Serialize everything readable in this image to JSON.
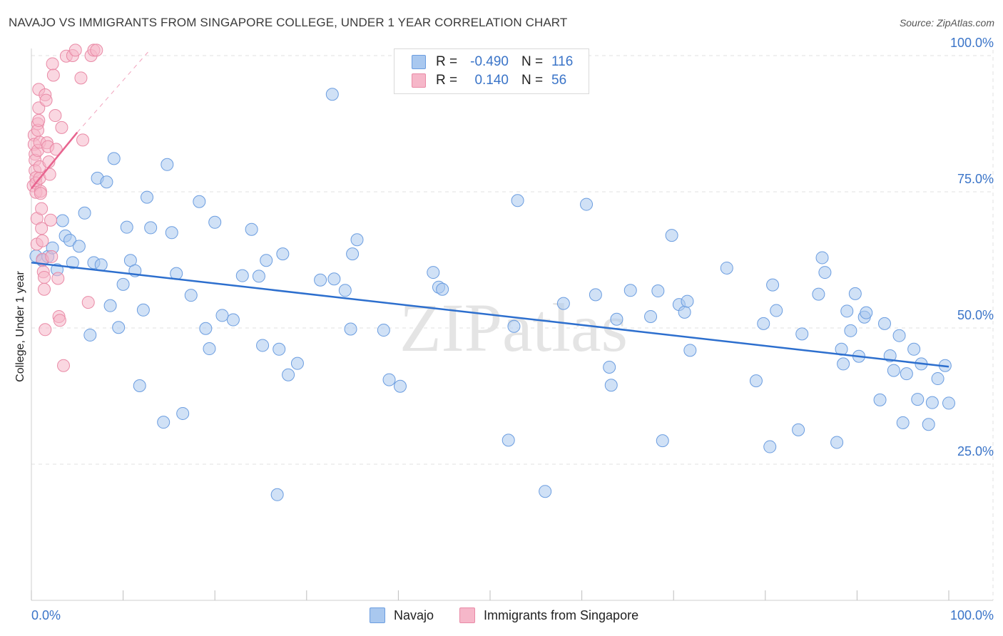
{
  "title": "NAVAJO VS IMMIGRANTS FROM SINGAPORE COLLEGE, UNDER 1 YEAR CORRELATION CHART",
  "source": "Source: ZipAtlas.com",
  "watermark": "ZIPatlas",
  "colors": {
    "navajo_fill": "#a9c8ef",
    "navajo_stroke": "#6b9de0",
    "navajo_line": "#2d6fce",
    "singapore_fill": "#f6b7c9",
    "singapore_stroke": "#e98aa6",
    "singapore_line": "#e8648f",
    "tick_text": "#3a74c8",
    "grid": "#e2e2e2"
  },
  "legend": {
    "navajo": {
      "r_label": "R =",
      "r_value": "-0.490",
      "n_label": "N =",
      "n_value": "116"
    },
    "singapore": {
      "r_label": "R =",
      "r_value": "0.140",
      "n_label": "N =",
      "n_value": "56"
    }
  },
  "bottom_legend": {
    "navajo": "Navajo",
    "singapore": "Immigrants from Singapore"
  },
  "chart_data": {
    "type": "scatter",
    "title": "NAVAJO VS IMMIGRANTS FROM SINGAPORE COLLEGE, UNDER 1 YEAR CORRELATION CHART",
    "xlabel": "",
    "ylabel": "College, Under 1 year",
    "xlim": [
      0,
      100
    ],
    "ylim": [
      0,
      100
    ],
    "x_tick_labels": [
      "0.0%",
      "100.0%"
    ],
    "y_ticks": [
      25,
      50,
      75,
      100
    ],
    "y_tick_labels": [
      "25.0%",
      "50.0%",
      "75.0%",
      "100.0%"
    ],
    "grid": true,
    "series": [
      {
        "name": "Navajo",
        "r": -0.49,
        "n": 116,
        "trend": {
          "x": [
            0,
            100
          ],
          "y": [
            62.0,
            42.9
          ]
        },
        "points": [
          [
            0.5,
            63.2
          ],
          [
            1.2,
            62.4
          ],
          [
            1.8,
            63.1
          ],
          [
            2.3,
            64.7
          ],
          [
            2.8,
            60.7
          ],
          [
            3.4,
            69.7
          ],
          [
            3.7,
            66.9
          ],
          [
            4.2,
            66.1
          ],
          [
            4.5,
            62.0
          ],
          [
            5.2,
            65.0
          ],
          [
            5.8,
            71.1
          ],
          [
            6.4,
            48.7
          ],
          [
            6.8,
            62.0
          ],
          [
            7.2,
            77.5
          ],
          [
            7.6,
            61.6
          ],
          [
            8.2,
            76.8
          ],
          [
            8.6,
            54.1
          ],
          [
            9.0,
            81.1
          ],
          [
            9.5,
            50.1
          ],
          [
            10.0,
            58.0
          ],
          [
            10.4,
            68.5
          ],
          [
            10.8,
            62.4
          ],
          [
            11.3,
            60.5
          ],
          [
            11.8,
            39.4
          ],
          [
            12.2,
            53.3
          ],
          [
            12.6,
            74.0
          ],
          [
            13.0,
            68.4
          ],
          [
            14.4,
            32.7
          ],
          [
            14.8,
            80.0
          ],
          [
            15.3,
            67.5
          ],
          [
            15.8,
            60.0
          ],
          [
            16.5,
            34.3
          ],
          [
            17.4,
            56.0
          ],
          [
            18.3,
            73.2
          ],
          [
            19.0,
            49.9
          ],
          [
            19.4,
            46.2
          ],
          [
            20.0,
            69.4
          ],
          [
            20.8,
            52.3
          ],
          [
            22.0,
            51.5
          ],
          [
            23.0,
            59.6
          ],
          [
            24.0,
            68.1
          ],
          [
            24.8,
            59.5
          ],
          [
            25.2,
            46.8
          ],
          [
            25.6,
            62.4
          ],
          [
            26.8,
            19.4
          ],
          [
            27.0,
            46.1
          ],
          [
            27.4,
            63.6
          ],
          [
            28.0,
            41.4
          ],
          [
            29.0,
            43.5
          ],
          [
            31.5,
            58.8
          ],
          [
            32.8,
            92.9
          ],
          [
            33.0,
            59.0
          ],
          [
            34.2,
            56.9
          ],
          [
            34.8,
            49.8
          ],
          [
            35.0,
            63.6
          ],
          [
            35.5,
            66.2
          ],
          [
            38.4,
            49.6
          ],
          [
            39.0,
            40.5
          ],
          [
            40.2,
            39.3
          ],
          [
            43.8,
            60.2
          ],
          [
            44.4,
            57.5
          ],
          [
            44.8,
            57.1
          ],
          [
            52.0,
            29.4
          ],
          [
            52.6,
            50.3
          ],
          [
            53.0,
            73.4
          ],
          [
            56.0,
            20.0
          ],
          [
            58.0,
            54.5
          ],
          [
            60.5,
            72.7
          ],
          [
            61.5,
            56.1
          ],
          [
            63.0,
            42.8
          ],
          [
            63.2,
            39.5
          ],
          [
            63.8,
            51.6
          ],
          [
            65.3,
            56.9
          ],
          [
            67.5,
            52.1
          ],
          [
            68.3,
            56.8
          ],
          [
            68.8,
            29.3
          ],
          [
            69.8,
            67.0
          ],
          [
            70.6,
            54.3
          ],
          [
            71.2,
            52.9
          ],
          [
            71.5,
            54.9
          ],
          [
            71.8,
            45.9
          ],
          [
            75.8,
            61.0
          ],
          [
            79.0,
            40.3
          ],
          [
            79.8,
            50.8
          ],
          [
            80.5,
            28.2
          ],
          [
            80.8,
            57.9
          ],
          [
            81.2,
            53.2
          ],
          [
            83.6,
            31.3
          ],
          [
            84.0,
            48.9
          ],
          [
            85.8,
            56.2
          ],
          [
            86.2,
            62.9
          ],
          [
            86.5,
            60.2
          ],
          [
            87.8,
            29.0
          ],
          [
            88.3,
            46.1
          ],
          [
            88.5,
            43.4
          ],
          [
            88.9,
            53.1
          ],
          [
            89.3,
            49.5
          ],
          [
            89.8,
            56.3
          ],
          [
            90.2,
            44.8
          ],
          [
            90.8,
            52.0
          ],
          [
            91.0,
            52.8
          ],
          [
            92.5,
            36.8
          ],
          [
            93.0,
            50.8
          ],
          [
            93.6,
            44.9
          ],
          [
            94.0,
            42.2
          ],
          [
            94.6,
            48.6
          ],
          [
            95.0,
            32.6
          ],
          [
            95.4,
            41.6
          ],
          [
            96.2,
            46.1
          ],
          [
            96.6,
            36.9
          ],
          [
            97.0,
            43.4
          ],
          [
            97.8,
            32.3
          ],
          [
            98.2,
            36.3
          ],
          [
            98.8,
            40.7
          ],
          [
            99.6,
            43.1
          ],
          [
            100.0,
            36.2
          ]
        ]
      },
      {
        "name": "Immigrants from Singapore",
        "r": 0.14,
        "n": 56,
        "trend": {
          "x": [
            0,
            5
          ],
          "y": [
            75.6,
            85.9
          ],
          "extended": {
            "x": [
              5,
              13
            ],
            "y": [
              85.9,
              101.2
            ]
          }
        },
        "points": [
          [
            0.2,
            76.1
          ],
          [
            0.3,
            85.4
          ],
          [
            0.3,
            83.7
          ],
          [
            0.4,
            81.9
          ],
          [
            0.4,
            80.8
          ],
          [
            0.4,
            78.9
          ],
          [
            0.5,
            77.6
          ],
          [
            0.5,
            76.6
          ],
          [
            0.5,
            74.9
          ],
          [
            0.6,
            70.1
          ],
          [
            0.6,
            65.4
          ],
          [
            0.7,
            87.5
          ],
          [
            0.7,
            86.3
          ],
          [
            0.7,
            82.6
          ],
          [
            0.8,
            93.8
          ],
          [
            0.8,
            90.4
          ],
          [
            0.8,
            88.1
          ],
          [
            0.9,
            84.1
          ],
          [
            0.9,
            79.6
          ],
          [
            0.9,
            77.5
          ],
          [
            1.0,
            75.1
          ],
          [
            1.0,
            74.7
          ],
          [
            1.1,
            71.9
          ],
          [
            1.1,
            68.3
          ],
          [
            1.2,
            66.0
          ],
          [
            1.2,
            62.6
          ],
          [
            1.3,
            60.3
          ],
          [
            1.4,
            59.3
          ],
          [
            1.4,
            57.1
          ],
          [
            1.5,
            49.7
          ],
          [
            1.5,
            92.8
          ],
          [
            1.6,
            91.8
          ],
          [
            1.7,
            84.0
          ],
          [
            1.8,
            83.3
          ],
          [
            1.9,
            80.5
          ],
          [
            2.0,
            78.2
          ],
          [
            2.1,
            69.8
          ],
          [
            2.2,
            63.1
          ],
          [
            2.3,
            98.5
          ],
          [
            2.4,
            96.4
          ],
          [
            2.6,
            89.0
          ],
          [
            2.7,
            82.8
          ],
          [
            2.9,
            59.1
          ],
          [
            3.0,
            52.1
          ],
          [
            3.1,
            51.4
          ],
          [
            3.3,
            86.8
          ],
          [
            3.5,
            43.1
          ],
          [
            3.8,
            99.9
          ],
          [
            4.5,
            100.0
          ],
          [
            4.8,
            101.0
          ],
          [
            5.4,
            95.9
          ],
          [
            5.6,
            84.5
          ],
          [
            6.2,
            54.7
          ],
          [
            6.5,
            100.0
          ],
          [
            6.8,
            101.0
          ],
          [
            7.1,
            101.0
          ]
        ]
      }
    ]
  }
}
